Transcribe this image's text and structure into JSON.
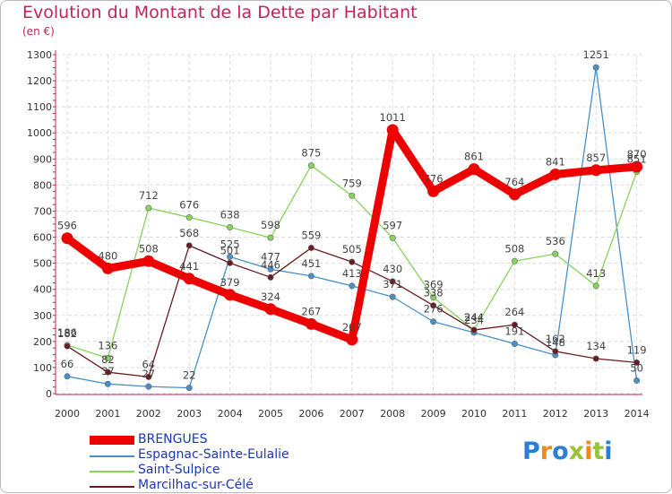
{
  "title": "Evolution du Montant de la Dette par Habitant",
  "subtitle": "(en €)",
  "logo": {
    "text": "Proxiti",
    "colors": [
      "#2a7fd4",
      "#f08a1c",
      "#2a7fd4",
      "#9bc23c",
      "#f08a1c",
      "#9bc23c",
      "#2a7fd4"
    ]
  },
  "chart_data": {
    "type": "line",
    "x": [
      "2000",
      "2001",
      "2002",
      "2003",
      "2004",
      "2005",
      "2006",
      "2007",
      "2008",
      "2009",
      "2010",
      "2011",
      "2012",
      "2013",
      "2014"
    ],
    "ylim": [
      0,
      1300
    ],
    "yticks": [
      0,
      100,
      200,
      300,
      400,
      500,
      600,
      700,
      800,
      900,
      1000,
      1100,
      1200,
      1300
    ],
    "grid": true,
    "legend_position": "bottom-left",
    "series": [
      {
        "name": "Espagnac-Sainte-Eulalie",
        "color": "#4a90c8",
        "values": [
          66,
          37,
          27,
          22,
          525,
          477,
          451,
          413,
          371,
          276,
          234,
          191,
          148,
          1251,
          50
        ]
      },
      {
        "name": "Saint-Sulpice",
        "color": "#86d45c",
        "values": [
          186,
          136,
          712,
          676,
          638,
          598,
          875,
          759,
          597,
          369,
          244,
          508,
          536,
          413,
          851
        ]
      },
      {
        "name": "Marcilhac-sur-Célé",
        "color": "#6a1a22",
        "values": [
          182,
          82,
          64,
          568,
          501,
          446,
          559,
          505,
          430,
          338,
          244,
          264,
          162,
          134,
          119
        ]
      },
      {
        "name": "BRENGUES",
        "color": "#ee0000",
        "values": [
          596,
          480,
          508,
          441,
          379,
          324,
          267,
          207,
          1011,
          776,
          861,
          764,
          841,
          857,
          870
        ]
      }
    ],
    "legend_order": [
      "BRENGUES",
      "Espagnac-Sainte-Eulalie",
      "Saint-Sulpice",
      "Marcilhac-sur-Célé"
    ]
  }
}
